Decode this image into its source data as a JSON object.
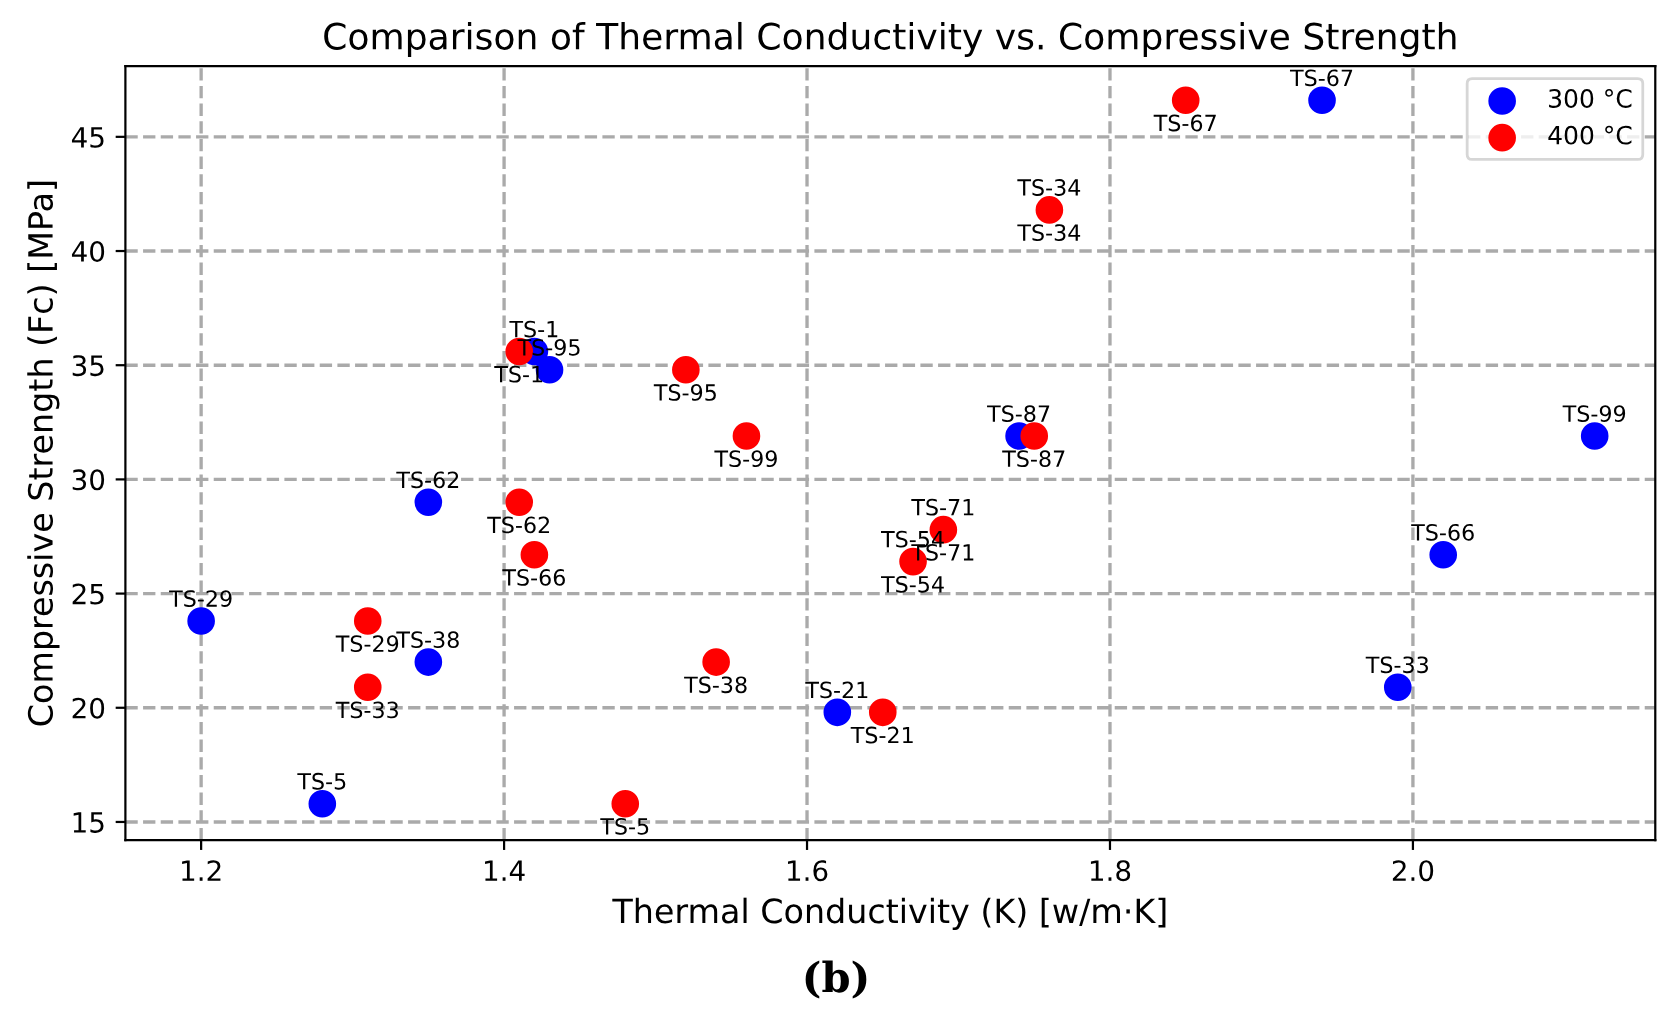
{
  "chart_data": {
    "type": "scatter",
    "title": "Comparison of Thermal Conductivity vs. Compressive Strength",
    "xlabel": "Thermal Conductivity (K) [w/m·K]",
    "ylabel": "Compressive Strength (Fc) [MPa]",
    "xlim": [
      1.15,
      2.16
    ],
    "ylim": [
      14.2,
      48.1
    ],
    "xticks": [
      1.2,
      1.4,
      1.6,
      1.8,
      {
        "value": 2,
        "label": "2.0"
      }
    ],
    "yticks": [
      15,
      20,
      25,
      30,
      35,
      40,
      45
    ],
    "grid": true,
    "legend": "top right",
    "marker": "circle",
    "series": [
      {
        "name": "300 °C",
        "color": "#0000ff",
        "x": [
          1.2,
          1.28,
          1.35,
          1.35,
          1.42,
          1.43,
          1.62,
          1.67,
          1.69,
          1.74,
          1.76,
          1.94,
          1.99,
          2.02,
          2.12
        ],
        "values": [
          23.8,
          15.8,
          29.0,
          22.0,
          35.6,
          34.8,
          19.8,
          null,
          null,
          31.9,
          null,
          46.6,
          20.9,
          26.7,
          31.9
        ],
        "value_labels": [
          "TS-29",
          "TS-5",
          "TS-62",
          "TS-38",
          "TS-1",
          "TS-95",
          "TS-21",
          null,
          null,
          "TS-87",
          null,
          "TS-67",
          "TS-33",
          "TS-66",
          "TS-99"
        ]
      },
      {
        "name": "400 °C",
        "color": "#ff0000",
        "x": [
          1.31,
          1.31,
          1.41,
          1.41,
          1.42,
          1.48,
          1.52,
          1.54,
          1.56,
          1.65,
          1.67,
          1.69,
          1.75,
          1.76,
          1.85
        ],
        "values": [
          23.8,
          20.9,
          35.6,
          29.0,
          26.7,
          15.8,
          34.8,
          22.0,
          31.9,
          19.8,
          26.4,
          27.8,
          31.9,
          41.8,
          46.6
        ],
        "value_labels": [
          "TS-29",
          "TS-33",
          "TS-1",
          "TS-62",
          "TS-66",
          "TS-5",
          "TS-95",
          "TS-38",
          "TS-99",
          "TS-21",
          "TS-54",
          "TS-71",
          "TS-87",
          "TS-34",
          "TS-67"
        ]
      }
    ],
    "annotations": [
      {
        "text": "TS-54",
        "x": 1.67,
        "y": 26.4
      },
      {
        "text": "TS-71",
        "x": 1.69,
        "y": 27.8
      },
      {
        "text": "TS-34",
        "x": 1.76,
        "y": 41.8
      },
      "(b)"
    ]
  }
}
